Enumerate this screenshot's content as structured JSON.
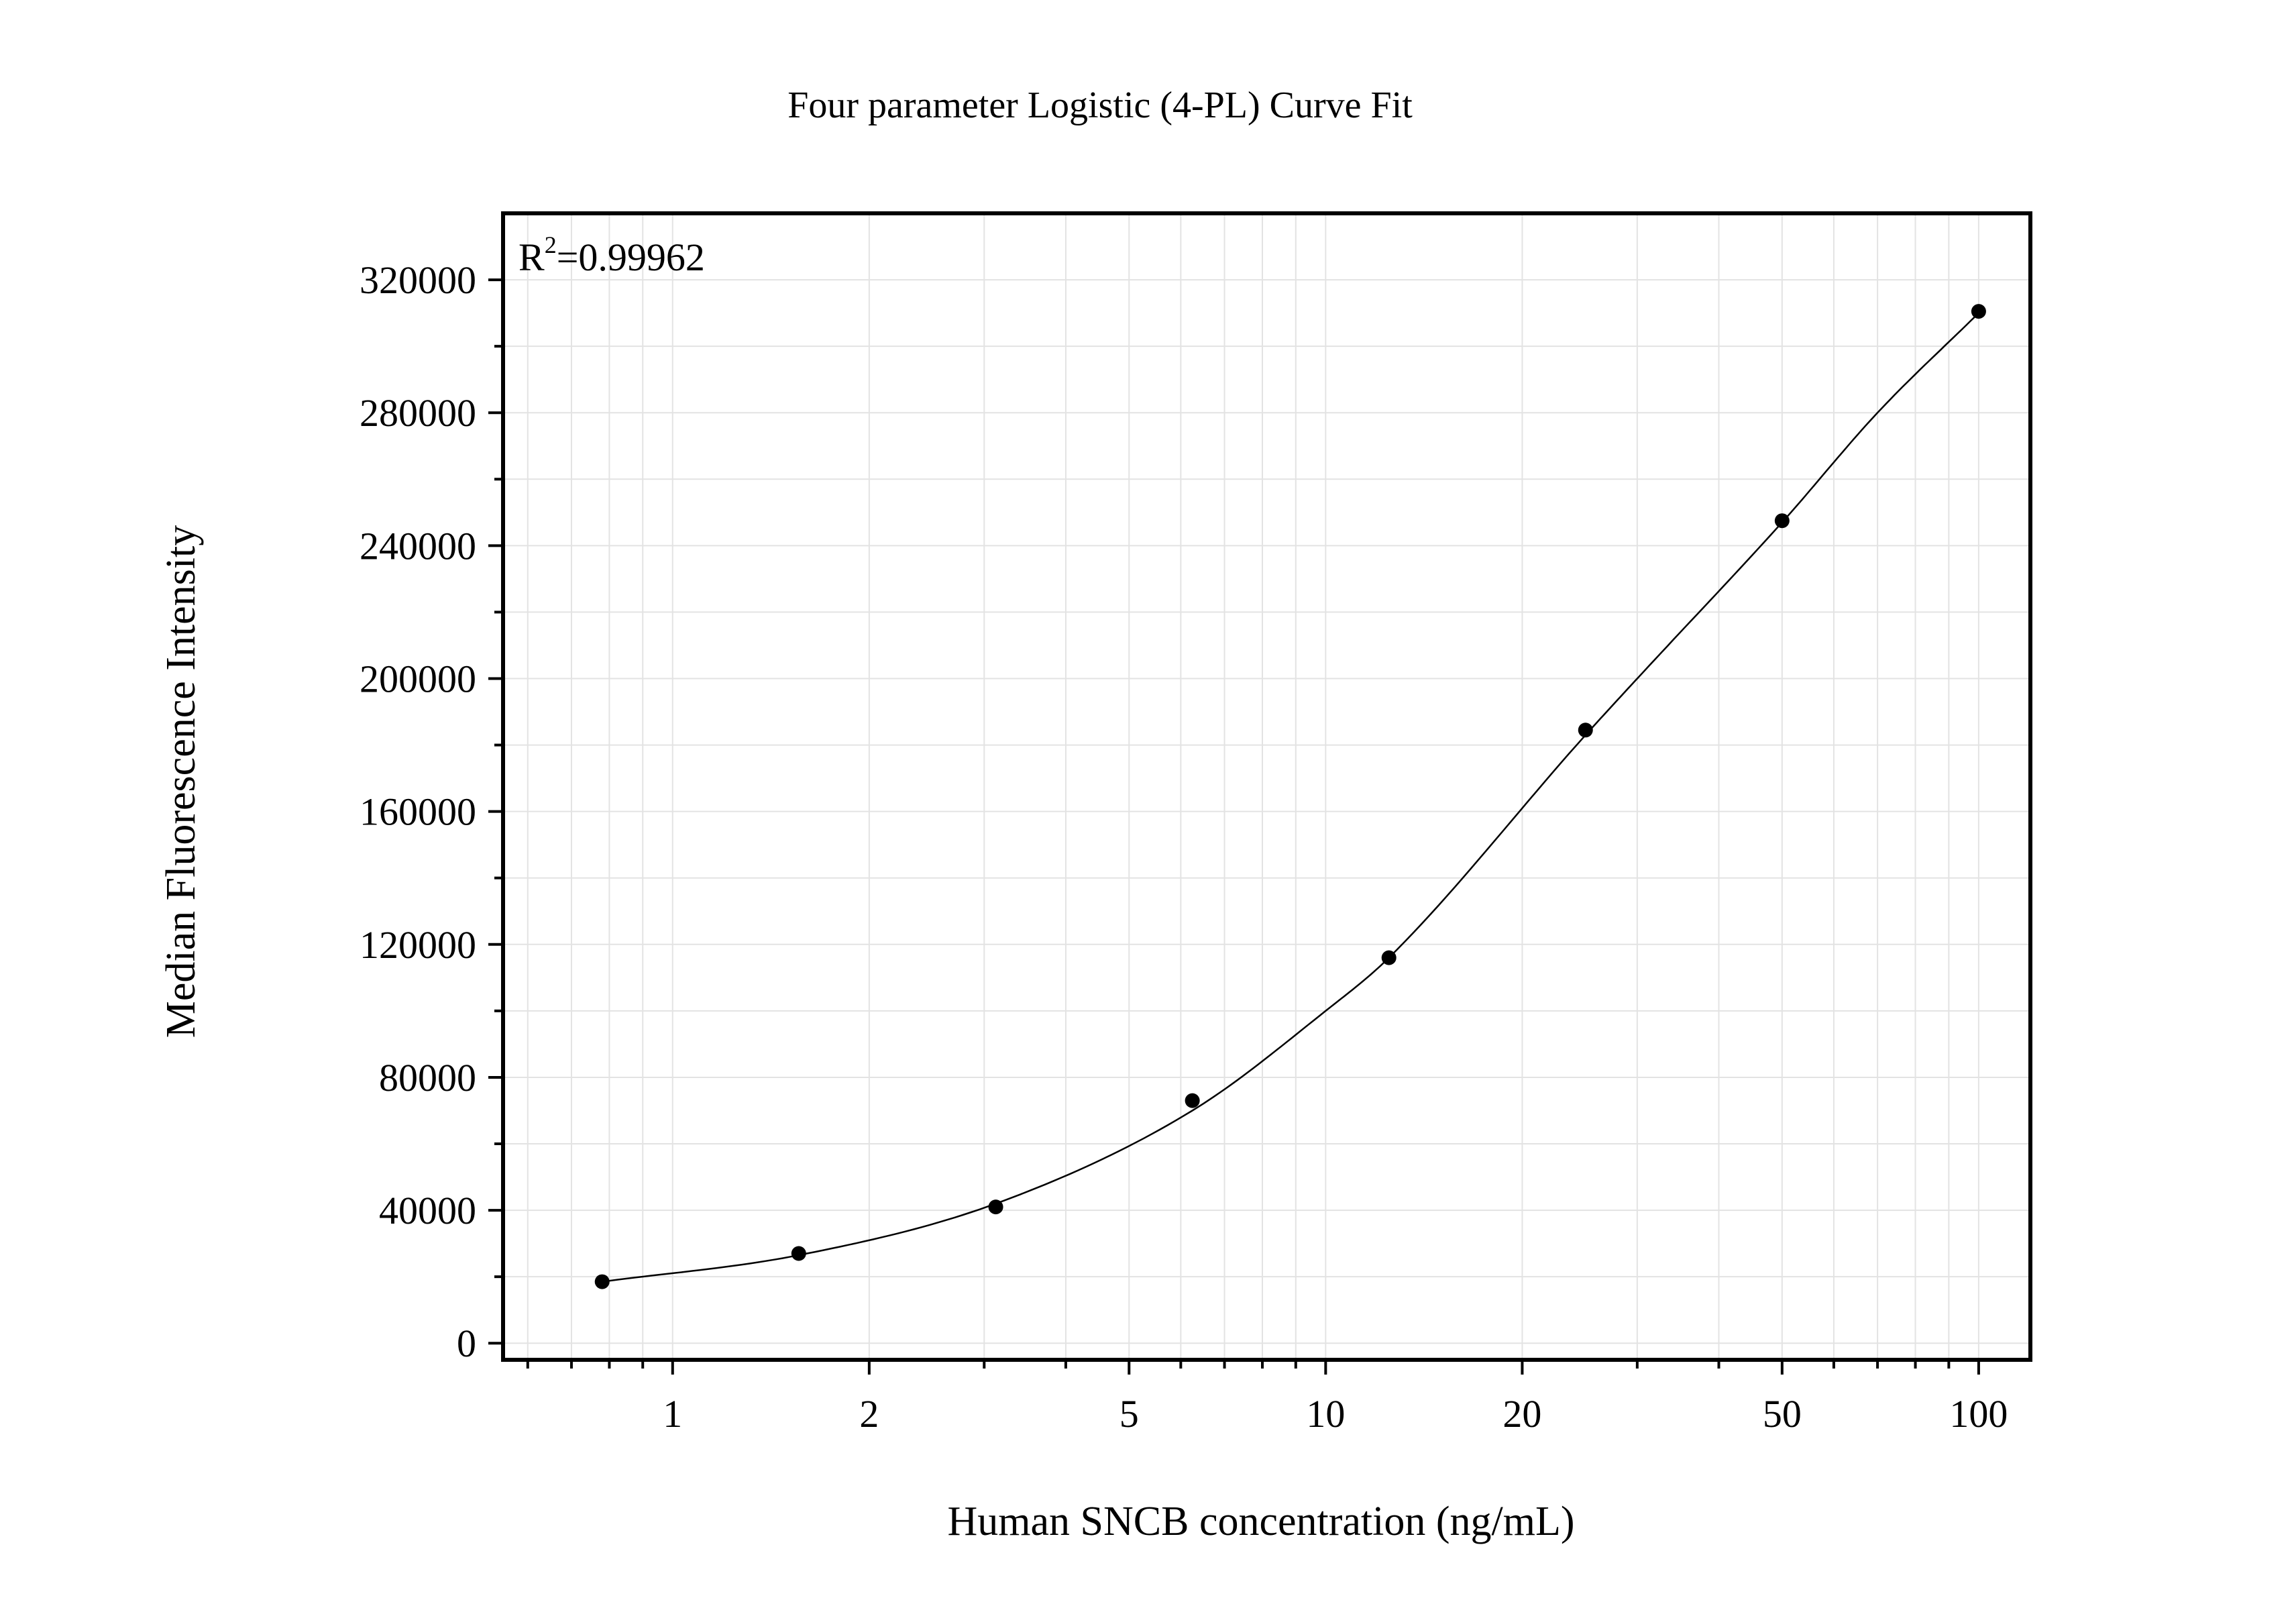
{
  "chart_data": {
    "type": "scatter",
    "title": "Four parameter Logistic (4-PL) Curve Fit",
    "xlabel": "Human SNCB concentration (ng/mL)",
    "ylabel": "Median Fluorescence Intensity",
    "x_scale": "log",
    "xlim": [
      0.55,
      120
    ],
    "ylim": [
      -5000,
      340000
    ],
    "x_ticks": [
      1,
      2,
      5,
      10,
      20,
      50,
      100
    ],
    "x_tick_labels": [
      "1",
      "2",
      "5",
      "10",
      "20",
      "50",
      "100"
    ],
    "y_ticks": [
      0,
      40000,
      80000,
      120000,
      160000,
      200000,
      240000,
      280000,
      320000
    ],
    "y_tick_labels": [
      "0",
      "40000",
      "80000",
      "120000",
      "160000",
      "200000",
      "240000",
      "280000",
      "320000"
    ],
    "grid": true,
    "annotation": {
      "base": "R",
      "superscript": "2",
      "text": "=0.99962"
    },
    "points": {
      "x": [
        0.78,
        1.56,
        3.125,
        6.25,
        12.5,
        25,
        50,
        100
      ],
      "y": [
        18500,
        27000,
        41000,
        73000,
        116000,
        184500,
        247500,
        310500
      ]
    },
    "fit_curve": {
      "x": [
        0.78,
        1.56,
        3.125,
        6.25,
        10,
        12.5,
        25,
        30,
        50,
        70,
        100
      ],
      "y": [
        18500,
        26500,
        42000,
        70000,
        100000,
        116000,
        183000,
        200000,
        247000,
        280000,
        310000
      ]
    },
    "colors": {
      "point": "#000000",
      "curve": "#000000",
      "grid": "#e3e3e3",
      "axis": "#000000"
    }
  }
}
